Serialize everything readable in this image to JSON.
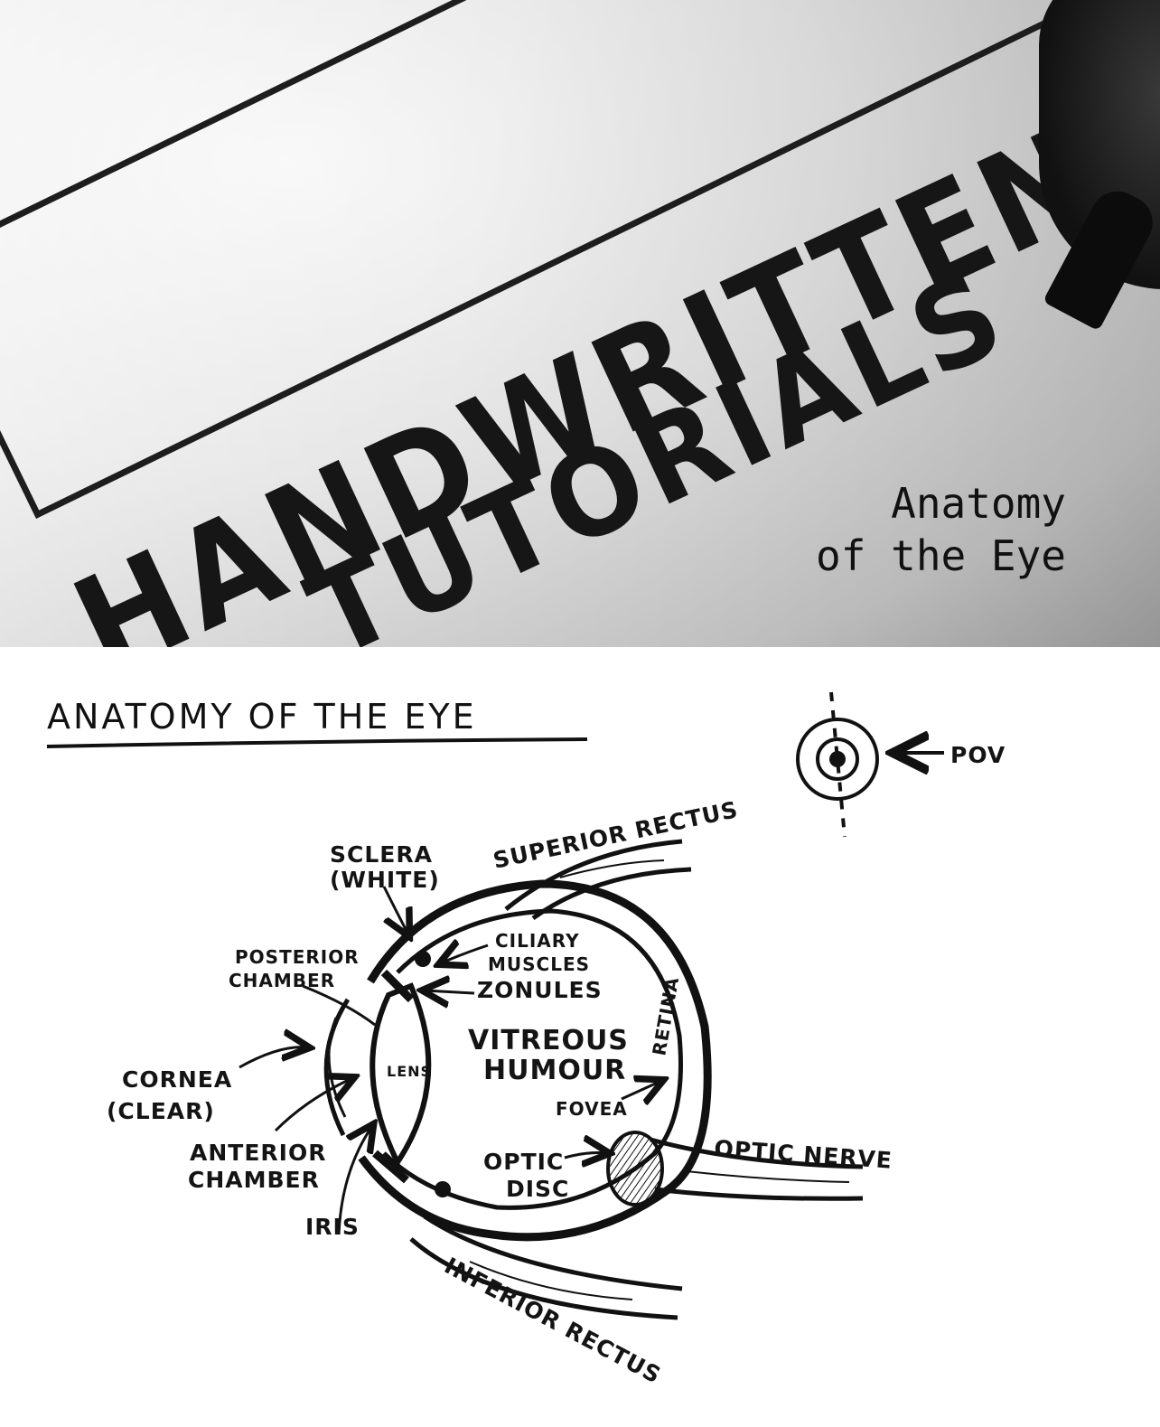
{
  "banner": {
    "handwritten_line1": "HANDWRITTEN",
    "handwritten_line2": "TUTORIALS",
    "title_line1": "Anatomy",
    "title_line2": "of the Eye"
  },
  "diagram": {
    "title": "ANATOMY OF THE EYE",
    "pov_label": "POV",
    "labels": {
      "sclera": "SCLERA",
      "sclera_note": "(WHITE)",
      "superior_rectus": "SUPERIOR RECTUS",
      "ciliary_muscles_1": "CILIARY",
      "ciliary_muscles_2": "MUSCLES",
      "zonules": "ZONULES",
      "posterior_chamber_1": "POSTERIOR",
      "posterior_chamber_2": "CHAMBER",
      "vitreous_humour_1": "VITREOUS",
      "vitreous_humour_2": "HUMOUR",
      "retina": "RETINA",
      "lens": "LENS",
      "cornea": "CORNEA",
      "cornea_note": "(CLEAR)",
      "fovea": "FOVEA",
      "optic_nerve": "OPTIC NERVE",
      "anterior_chamber_1": "ANTERIOR",
      "anterior_chamber_2": "CHAMBER",
      "optic_disc_1": "OPTIC",
      "optic_disc_2": "DISC",
      "iris": "IRIS",
      "inferior_rectus": "INFERIOR RECTUS"
    }
  }
}
